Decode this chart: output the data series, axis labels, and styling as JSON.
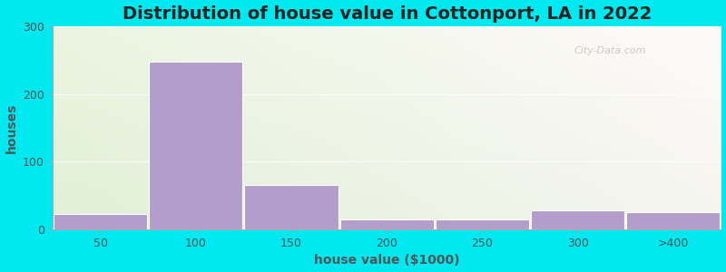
{
  "title": "Distribution of house value in Cottonport, LA in 2022",
  "xlabel": "house value ($1000)",
  "ylabel": "houses",
  "categories": [
    "50",
    "100",
    "150",
    "200",
    "250",
    "300",
    ">400"
  ],
  "values": [
    22,
    248,
    65,
    15,
    15,
    28,
    25
  ],
  "bar_color": "#b39dca",
  "ylim": [
    0,
    300
  ],
  "yticks": [
    0,
    100,
    200,
    300
  ],
  "title_fontsize": 14,
  "label_fontsize": 10,
  "tick_fontsize": 9,
  "watermark": "City-Data.com",
  "outer_bg": "#00e8f0",
  "bar_edges": "white",
  "grid_color": "#cccccc"
}
